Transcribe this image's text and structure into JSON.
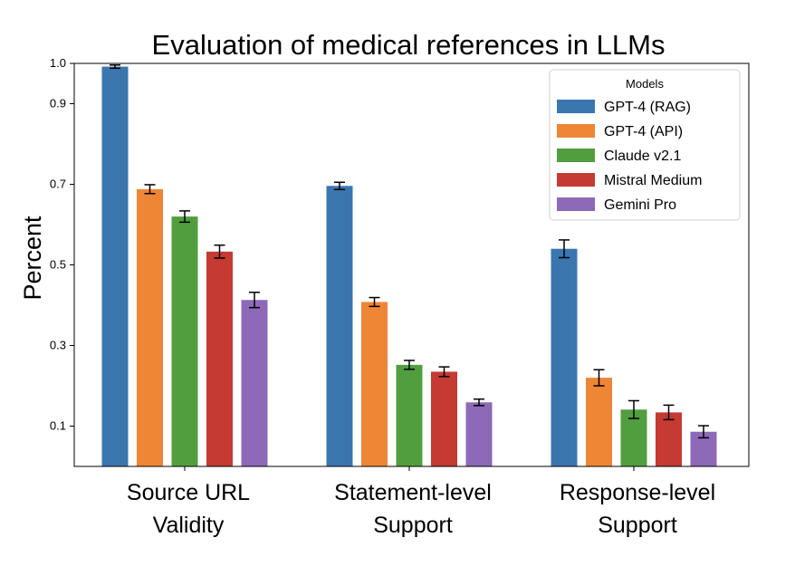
{
  "chart_data": {
    "type": "bar",
    "title": "Evaluation of medical references in LLMs",
    "xlabel": "",
    "ylabel": "Percent",
    "ylim": [
      0.0,
      1.0
    ],
    "yticks": [
      "0.1",
      "0.3",
      "0.5",
      "0.7",
      "0.9",
      "1.0"
    ],
    "categories": [
      [
        "Source URL",
        "Validity"
      ],
      [
        "Statement-level",
        "Support"
      ],
      [
        "Response-level",
        "Support"
      ]
    ],
    "legend": {
      "title": "Models",
      "position": "top-right"
    },
    "grid": false,
    "series": [
      {
        "name": "GPT-4 (RAG)",
        "color": "#3b76af",
        "values": [
          0.992,
          0.696,
          0.54
        ],
        "errors": [
          0.004,
          0.009,
          0.022
        ]
      },
      {
        "name": "GPT-4 (API)",
        "color": "#ef8636",
        "values": [
          0.688,
          0.408,
          0.22
        ],
        "errors": [
          0.011,
          0.011,
          0.02
        ]
      },
      {
        "name": "Claude v2.1",
        "color": "#519e3e",
        "values": [
          0.62,
          0.252,
          0.141
        ],
        "errors": [
          0.014,
          0.011,
          0.022
        ]
      },
      {
        "name": "Mistral Medium",
        "color": "#c53a32",
        "values": [
          0.533,
          0.235,
          0.134
        ],
        "errors": [
          0.016,
          0.012,
          0.018
        ]
      },
      {
        "name": "Gemini Pro",
        "color": "#8d69b8",
        "values": [
          0.413,
          0.159,
          0.086
        ],
        "errors": [
          0.019,
          0.008,
          0.015
        ]
      }
    ]
  }
}
